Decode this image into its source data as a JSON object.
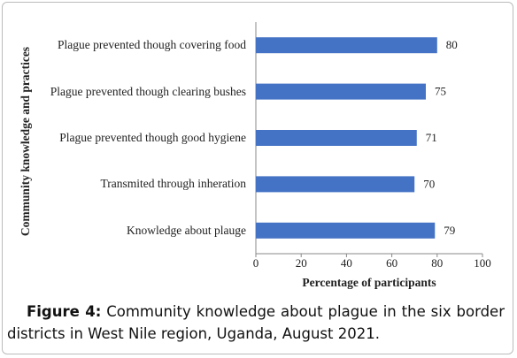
{
  "chart_data": {
    "type": "bar",
    "orientation": "horizontal",
    "ylabel": "Community knowledge and practices",
    "xlabel": "Percentage of participants",
    "categories": [
      "Plague prevented though covering food",
      "Plague prevented though clearing bushes",
      "Plague prevented though good hygiene",
      "Transmited through inheration",
      "Knowledge about plauge"
    ],
    "values": [
      80,
      75,
      71,
      70,
      79
    ],
    "color": "#4472c4",
    "xlim": [
      0,
      100
    ],
    "xticks": [
      0,
      20,
      40,
      60,
      80,
      100
    ]
  },
  "caption": {
    "label": "Figure 4:",
    "text": "Community knowledge about plague in the six border districts in West Nile region, Uganda, August 2021."
  }
}
